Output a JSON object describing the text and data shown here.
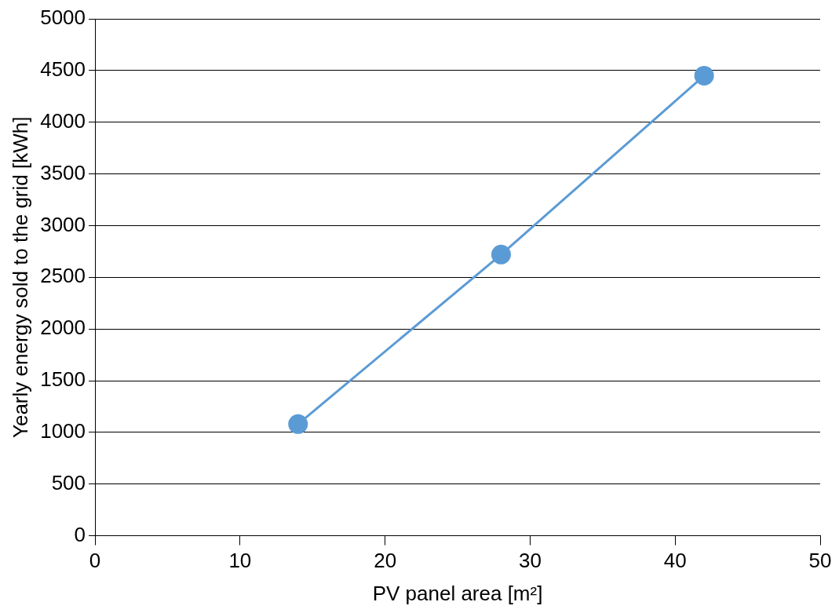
{
  "chart_data": {
    "type": "line",
    "xlabel": "PV panel area [m²]",
    "ylabel": "Yearly energy sold to the grid [kWh]",
    "x": [
      14,
      28,
      42
    ],
    "series": [
      {
        "color": "#5b9bd5",
        "values": [
          1080,
          2720,
          4450
        ]
      }
    ],
    "xlim": [
      0,
      50
    ],
    "xticks": [
      0,
      10,
      20,
      30,
      40,
      50
    ],
    "ylim": [
      0,
      5000
    ],
    "yticks": [
      0,
      500,
      1000,
      1500,
      2000,
      2500,
      3000,
      3500,
      4000,
      4500,
      5000
    ],
    "grid": "y",
    "legend": false,
    "marker": "circle",
    "line_style": "solid"
  }
}
